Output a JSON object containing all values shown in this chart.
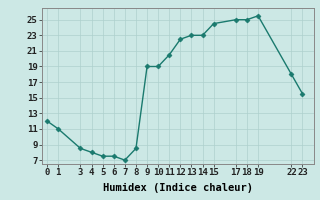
{
  "x": [
    0,
    1,
    3,
    4,
    5,
    6,
    7,
    8,
    9,
    10,
    11,
    12,
    13,
    14,
    15,
    17,
    18,
    19,
    22,
    23
  ],
  "y": [
    12,
    11,
    8.5,
    8,
    7.5,
    7.5,
    7,
    8.5,
    19,
    19,
    20.5,
    22.5,
    23,
    23,
    24.5,
    25,
    25,
    25.5,
    18,
    15.5
  ],
  "xticks": [
    0,
    1,
    3,
    4,
    5,
    6,
    7,
    8,
    9,
    10,
    11,
    12,
    13,
    14,
    15,
    17,
    18,
    19,
    22,
    23
  ],
  "yticks": [
    7,
    9,
    11,
    13,
    15,
    17,
    19,
    21,
    23,
    25
  ],
  "ylim": [
    6.5,
    26.5
  ],
  "xlim": [
    -0.5,
    24
  ],
  "xlabel": "Humidex (Indice chaleur)",
  "line_color": "#1a7a6e",
  "marker_color": "#1a7a6e",
  "bg_color": "#cce8e5",
  "grid_color": "#aed0ce",
  "xlabel_fontsize": 7.5,
  "tick_fontsize": 6.5,
  "line_width": 1.0,
  "marker_size": 2.5
}
